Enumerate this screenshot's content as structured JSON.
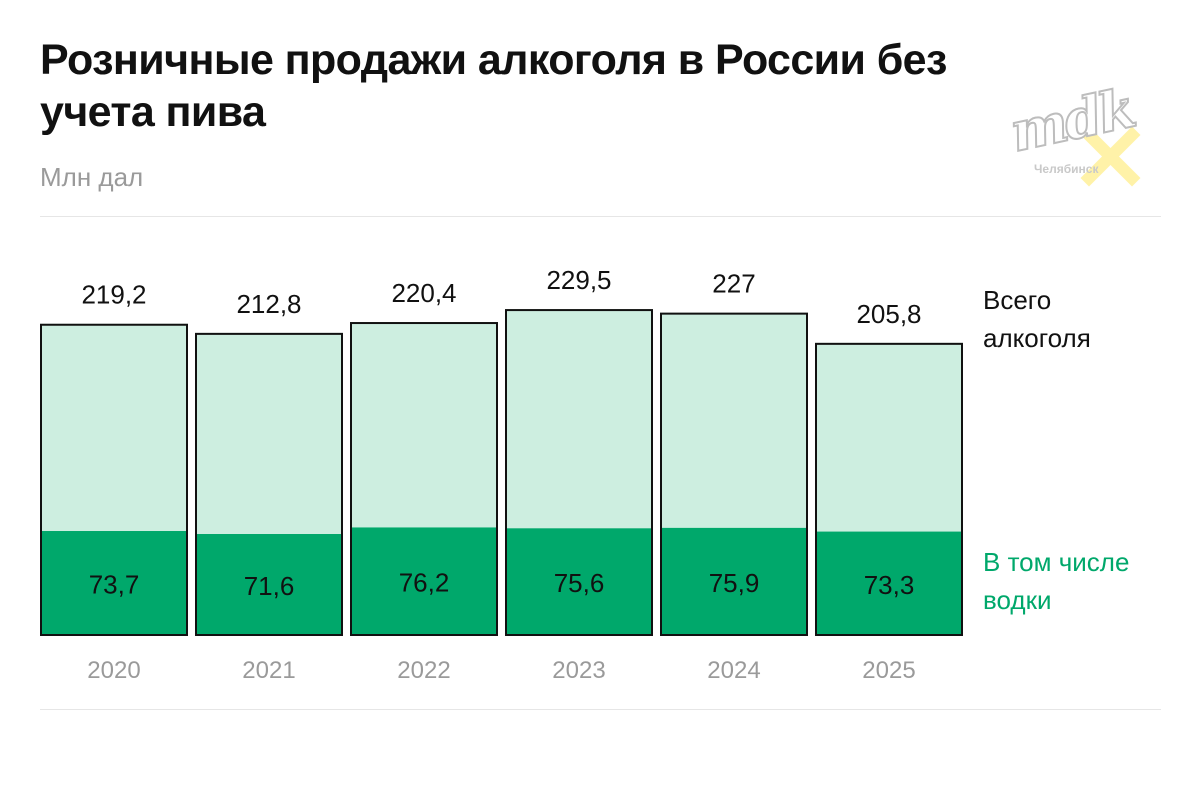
{
  "header": {
    "title": "Розничные продажи алкоголя в России без учета пива",
    "unit": "Млн дал"
  },
  "legend": {
    "total": "Всего\nалкоголя",
    "vodka": "В том числе\nводки"
  },
  "watermark": {
    "logo_text": "mdk",
    "city": "Челябинск"
  },
  "colors": {
    "total_fill": "#cdeee0",
    "vodka_fill": "#00a86b",
    "bar_stroke": "#111111",
    "year_label": "#9a9a9a",
    "legend_vodka": "#00a86b",
    "watermark_cross": "#fff2a8"
  },
  "chart_data": {
    "type": "bar",
    "stacked": false,
    "overlapping": true,
    "categories": [
      "2020",
      "2021",
      "2022",
      "2023",
      "2024",
      "2025"
    ],
    "series": [
      {
        "name": "Всего алкоголя",
        "values": [
          219.2,
          212.8,
          220.4,
          229.5,
          227,
          205.8
        ],
        "labels": [
          "219,2",
          "212,8",
          "220,4",
          "229,5",
          "227",
          "205,8"
        ]
      },
      {
        "name": "В том числе водки",
        "values": [
          73.7,
          71.6,
          76.2,
          75.6,
          75.9,
          73.3
        ],
        "labels": [
          "73,7",
          "71,6",
          "76,2",
          "75,6",
          "75,9",
          "73,3"
        ]
      }
    ],
    "title": "Розничные продажи алкоголя в России без учета пива",
    "ylabel": "Млн дал",
    "grid": false,
    "legend_position": "right"
  }
}
